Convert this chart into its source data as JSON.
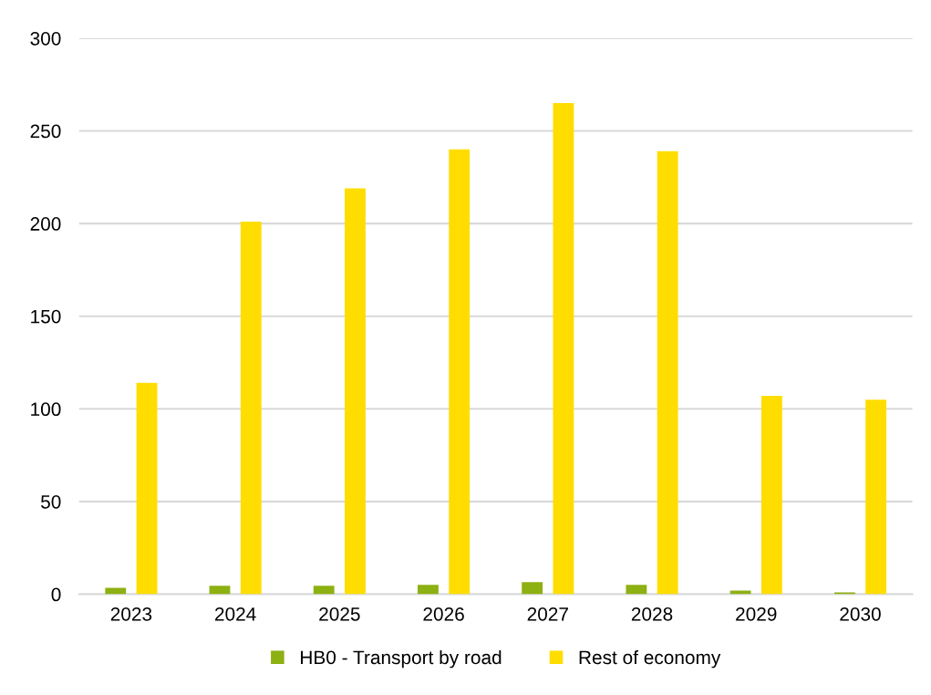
{
  "chart_data": {
    "type": "bar",
    "categories": [
      "2023",
      "2024",
      "2025",
      "2026",
      "2027",
      "2028",
      "2029",
      "2030"
    ],
    "series": [
      {
        "name": "HB0 - Transport by road",
        "color": "#8db012",
        "values": [
          3.5,
          4.5,
          4.5,
          5,
          6.5,
          5,
          2,
          1
        ]
      },
      {
        "name": "Rest of economy",
        "color": "#ffdd00",
        "values": [
          114,
          201,
          219,
          240,
          265,
          239,
          107,
          105
        ]
      }
    ],
    "ylim": [
      0,
      300
    ],
    "yticks": [
      0,
      50,
      100,
      150,
      200,
      250,
      300
    ],
    "grid": "y",
    "legend": "bottom"
  }
}
